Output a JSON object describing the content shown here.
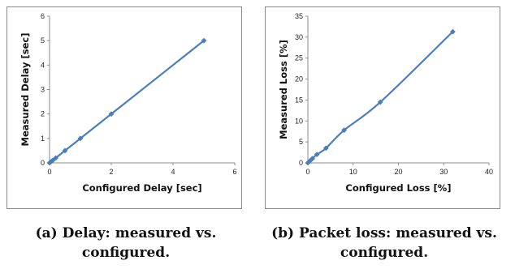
{
  "chart_data": [
    {
      "type": "line",
      "xlabel": "Configured Delay [sec]",
      "ylabel": "Measured Delay [sec]",
      "xlim": [
        0,
        6
      ],
      "ylim": [
        0,
        6
      ],
      "xticks": [
        0,
        2,
        4,
        6
      ],
      "yticks": [
        0,
        1,
        2,
        3,
        4,
        5,
        6
      ],
      "grid": false,
      "series": [
        {
          "x": [
            0,
            0.05,
            0.1,
            0.2,
            0.5,
            1,
            2,
            5
          ],
          "y": [
            0,
            0.05,
            0.1,
            0.2,
            0.5,
            1,
            2,
            5
          ],
          "color": "#4a7ebb"
        }
      ],
      "caption": [
        "(a) Delay: measured vs.",
        "configured."
      ]
    },
    {
      "type": "line",
      "xlabel": "Configured Loss [%]",
      "ylabel": "Measured Loss [%]",
      "xlim": [
        0,
        40
      ],
      "ylim": [
        0,
        35
      ],
      "xticks": [
        0,
        10,
        20,
        30,
        40
      ],
      "yticks": [
        0,
        5,
        10,
        15,
        20,
        25,
        30,
        35
      ],
      "grid": false,
      "series": [
        {
          "x": [
            0,
            0.5,
            1,
            2,
            4,
            8,
            16,
            32
          ],
          "y": [
            0,
            0.5,
            1,
            2,
            3.5,
            7.8,
            14.5,
            31.3
          ],
          "color": "#4a7ebb"
        }
      ],
      "caption": [
        "(b) Packet loss: measured vs.",
        "configured."
      ]
    }
  ]
}
